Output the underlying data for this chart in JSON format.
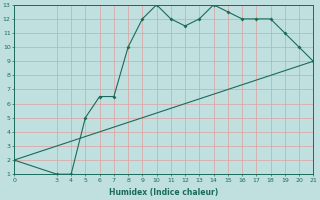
{
  "xlabel": "Humidex (Indice chaleur)",
  "bg_color": "#c0e0e0",
  "line_color": "#1a6b5a",
  "grid_color": "#e0a0a0",
  "xlim": [
    0,
    21
  ],
  "ylim": [
    1,
    13
  ],
  "xticks": [
    0,
    3,
    4,
    5,
    6,
    7,
    8,
    9,
    10,
    11,
    12,
    13,
    14,
    15,
    16,
    17,
    18,
    19,
    20,
    21
  ],
  "yticks": [
    1,
    2,
    3,
    4,
    5,
    6,
    7,
    8,
    9,
    10,
    11,
    12,
    13
  ],
  "line1_x": [
    0,
    3,
    4,
    5,
    6,
    7,
    8,
    9,
    10,
    11,
    12,
    13,
    14,
    15,
    16,
    17,
    18,
    19,
    20,
    21
  ],
  "line1_y": [
    2,
    1,
    1,
    5,
    6.5,
    6.5,
    10,
    12,
    13,
    12,
    11.5,
    12,
    13,
    12.5,
    12,
    12,
    12,
    11,
    10,
    9
  ],
  "line2_x": [
    0,
    21
  ],
  "line2_y": [
    2,
    9
  ],
  "marker_x": [
    0,
    3,
    4,
    5,
    6,
    7,
    8,
    9,
    10,
    11,
    12,
    13,
    14,
    15,
    16,
    17,
    18,
    19,
    20,
    21
  ],
  "marker_y": [
    2,
    1,
    1,
    5,
    6.5,
    6.5,
    10,
    12,
    13,
    12,
    11.5,
    12,
    13,
    12.5,
    12,
    12,
    12,
    11,
    10,
    9
  ]
}
